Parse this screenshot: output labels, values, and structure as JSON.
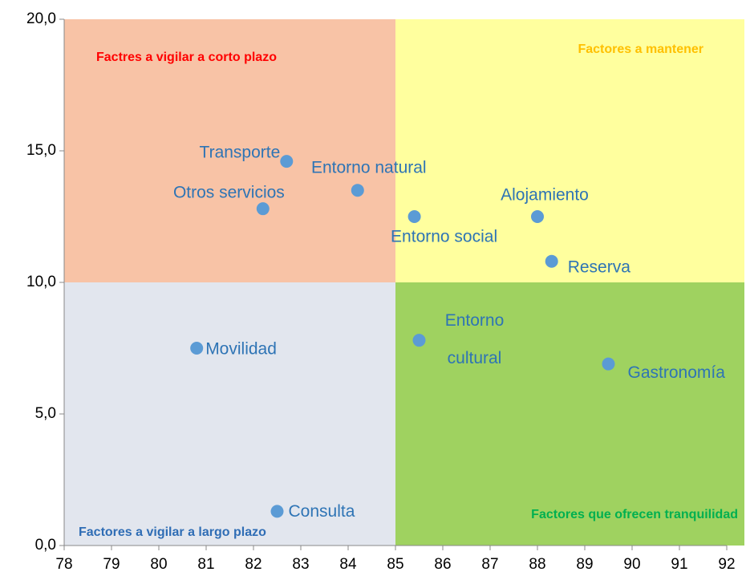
{
  "chart_data": {
    "type": "scatter",
    "xlim": [
      78,
      92
    ],
    "xticks": [
      78,
      79,
      80,
      81,
      82,
      83,
      84,
      85,
      86,
      87,
      88,
      89,
      90,
      91,
      92
    ],
    "ylim": [
      0,
      20
    ],
    "yticks": [
      {
        "value": 0,
        "label": "0,0"
      },
      {
        "value": 5,
        "label": "5,0"
      },
      {
        "value": 10,
        "label": "10,0"
      },
      {
        "value": 15,
        "label": "15,0"
      },
      {
        "value": 20,
        "label": "20,0"
      }
    ],
    "color": "#5b9bd5",
    "divider": {
      "x": 85,
      "y": 10
    },
    "quadrants": [
      {
        "label": "Factres a vigilar a corto plazo",
        "color": "#ff0000",
        "fill": "#f8c3a6"
      },
      {
        "label": "Factores a mantener",
        "color": "#ffc000",
        "fill": "#ffff9e"
      },
      {
        "label": "Factores a vigilar a largo plazo",
        "color": "#2f6db5",
        "fill": "#e2e6ee"
      },
      {
        "label": "Factores que ofrecen tranquilidad",
        "color": "#00b050",
        "fill": "#9fd260"
      }
    ],
    "points": [
      {
        "name": "Transporte",
        "x": 82.7,
        "y": 14.6
      },
      {
        "name": "Entorno natural",
        "x": 84.2,
        "y": 13.5
      },
      {
        "name": "Otros servicios",
        "x": 82.2,
        "y": 12.8
      },
      {
        "name": "Entorno social",
        "x": 85.4,
        "y": 12.5
      },
      {
        "name": "Alojamiento",
        "x": 88.0,
        "y": 12.5
      },
      {
        "name": "Reserva",
        "x": 88.3,
        "y": 10.8
      },
      {
        "name": "Movilidad",
        "x": 80.8,
        "y": 7.5
      },
      {
        "name": "Entorno cultural",
        "x": 85.5,
        "y": 7.8
      },
      {
        "name": "Gastronomía",
        "x": 89.5,
        "y": 6.9
      },
      {
        "name": "Consulta",
        "x": 82.5,
        "y": 1.3
      }
    ]
  }
}
